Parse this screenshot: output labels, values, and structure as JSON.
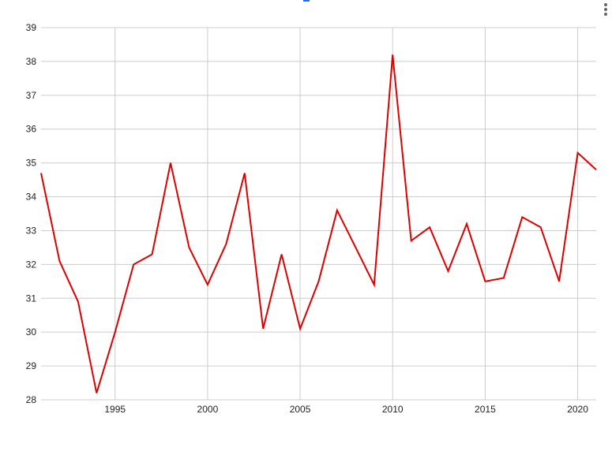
{
  "chart_data": {
    "type": "line",
    "title": "",
    "xlabel": "",
    "ylabel": "",
    "xlim": [
      1991,
      2021
    ],
    "ylim": [
      28,
      39
    ],
    "grid": true,
    "legend": "none",
    "x_ticks": [
      1995,
      2000,
      2005,
      2010,
      2015,
      2020
    ],
    "y_ticks": [
      28,
      29,
      30,
      31,
      32,
      33,
      34,
      35,
      36,
      37,
      38,
      39
    ],
    "series": [
      {
        "color": "#dd0000",
        "x": [
          1991,
          1992,
          1993,
          1994,
          1995,
          1996,
          1997,
          1998,
          1999,
          2000,
          2001,
          2002,
          2003,
          2004,
          2005,
          2006,
          2007,
          2008,
          2009,
          2010,
          2011,
          2012,
          2013,
          2014,
          2015,
          2016,
          2017,
          2018,
          2019,
          2020,
          2021
        ],
        "y": [
          34.7,
          32.1,
          30.9,
          28.2,
          30.0,
          32.0,
          32.3,
          35.0,
          32.5,
          31.4,
          32.6,
          34.7,
          30.1,
          32.3,
          30.1,
          31.5,
          33.6,
          32.5,
          31.4,
          38.2,
          32.7,
          33.1,
          31.8,
          33.2,
          31.5,
          31.6,
          33.4,
          33.1,
          31.5,
          35.3,
          34.8
        ]
      }
    ]
  },
  "ui": {
    "menu_icon": "more-vert-icon",
    "grid_color": "#cccccc",
    "text_color": "#222222"
  }
}
